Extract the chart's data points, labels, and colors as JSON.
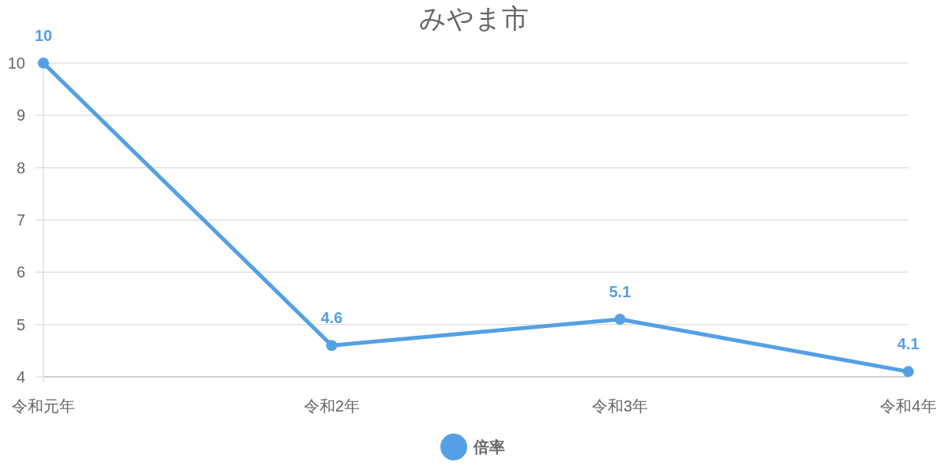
{
  "chart_data": {
    "type": "line",
    "title": "みやま市",
    "categories": [
      "令和元年",
      "令和2年",
      "令和3年",
      "令和4年"
    ],
    "series": [
      {
        "name": "倍率",
        "color": "#55a0e5",
        "values": [
          10,
          4.6,
          5.1,
          4.1
        ]
      }
    ],
    "ylim": [
      4,
      10
    ],
    "yticks": [
      4,
      5,
      6,
      7,
      8,
      9,
      10
    ],
    "grid": "y",
    "legend": "bottom",
    "marker": "circle",
    "line_style": "solid",
    "data_labels": true
  }
}
